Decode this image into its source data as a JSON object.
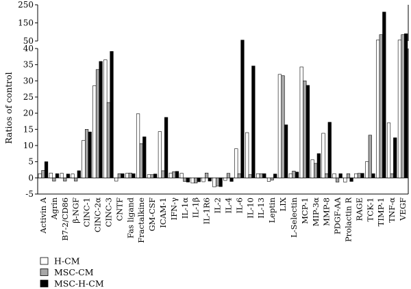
{
  "chart_data": {
    "type": "bar",
    "ylabel": "Ratios of control",
    "ylim_lower": [
      -5,
      40
    ],
    "ylim_upper": [
      50,
      250
    ],
    "yticks_lower": [
      -5,
      0,
      5,
      10,
      15,
      20,
      25,
      30,
      35,
      40
    ],
    "yticks_upper": [
      50,
      150,
      250
    ],
    "yticks_labels_lower": [
      "-5",
      "0",
      "5",
      "10",
      "15",
      "20",
      "25",
      "30",
      "35",
      "40"
    ],
    "yticks_labels_upper": [
      "50",
      "150",
      "250"
    ],
    "legend_position": "bottom-left",
    "colors": {
      "H-CM": "#ffffff",
      "MSC-CM": "#a6a6a6",
      "MSC-H-CM": "#000000"
    },
    "categories": [
      "Activin A",
      "Agrin",
      "B7-2/CD86",
      "β-NGF",
      "CINC-1",
      "CINC-2α",
      "CINC-3",
      "CNTF",
      "Fas ligand",
      "Fractalkine",
      "GM-CSF",
      "ICAM-1",
      "IFN-γ",
      "IL-1α",
      "IL-1β",
      "IL-1R6",
      "IL-2",
      "IL-4",
      "IL-6",
      "IL-10",
      "IL-13",
      "Leptin",
      "LIX",
      "L-Selectin",
      "MCP-1",
      "MIP-3α",
      "MMP-8",
      "PDGF-AA",
      "Prolactin R",
      "RAGE",
      "TCK-1",
      "TIMP-1",
      "TNF-α",
      "VEGF"
    ],
    "series": [
      {
        "name": "H-CM",
        "values": [
          1.3,
          1.5,
          1.4,
          1.2,
          11.6,
          28.5,
          36.5,
          -1.0,
          1.4,
          19.8,
          1.0,
          14.3,
          1.5,
          1.4,
          -1.6,
          -1.2,
          -2.8,
          -0.8,
          9.0,
          14.0,
          1.3,
          -1.1,
          32.0,
          1.3,
          34.3,
          5.6,
          13.8,
          1.3,
          -1.3,
          1.3,
          5.0,
          55,
          17.0,
          55
        ]
      },
      {
        "name": "MSC-CM",
        "values": [
          2.3,
          -1.0,
          -1.0,
          -1.0,
          15.0,
          33.5,
          23.3,
          1.3,
          1.5,
          10.6,
          1.0,
          2.2,
          1.9,
          -1.1,
          -1.6,
          1.5,
          -2.5,
          1.4,
          1.3,
          1.0,
          1.3,
          -0.7,
          31.6,
          2.1,
          30.0,
          4.5,
          1.3,
          -1.3,
          1.3,
          1.4,
          13.2,
          85,
          1.3,
          85
        ]
      },
      {
        "name": "MSC-H-CM",
        "values": [
          5.0,
          1.3,
          1.2,
          2.2,
          14.2,
          36.0,
          39.1,
          1.3,
          1.3,
          12.7,
          1.2,
          18.7,
          2.0,
          -1.3,
          -1.2,
          -1.0,
          -2.7,
          -1.1,
          55,
          34.6,
          1.3,
          1.2,
          16.4,
          1.8,
          28.6,
          7.5,
          17.2,
          1.3,
          -1.1,
          1.4,
          1.3,
          210,
          12.4,
          90
        ]
      }
    ]
  }
}
